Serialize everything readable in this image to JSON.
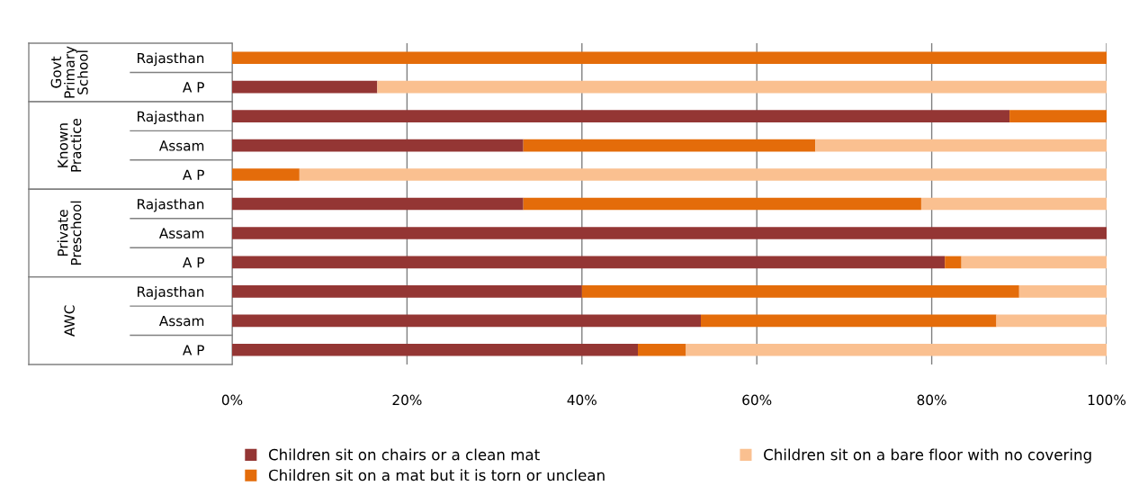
{
  "chart_data": {
    "type": "bar",
    "orientation": "horizontal",
    "stacked": true,
    "categories": [
      "Rajasthan",
      "A P",
      "Rajasthan",
      "Assam",
      "A P",
      "Rajasthan",
      "Assam",
      "A P",
      "Rajasthan",
      "Assam",
      "A P"
    ],
    "series": [
      {
        "name": "Children sit on chairs or a clean mat",
        "color": "#943634",
        "values": [
          0,
          16.6,
          88.9,
          33.3,
          0,
          33.3,
          100,
          81.5,
          40,
          53.6,
          46.4
        ]
      },
      {
        "name": "Children sit on a mat but it is torn or unclean",
        "color": "#e46c0a",
        "values": [
          100,
          0,
          11.1,
          33.4,
          7.7,
          45.5,
          0,
          1.9,
          50,
          33.8,
          5.5
        ]
      },
      {
        "name": "Children sit on a bare floor with no covering",
        "color": "#fac090",
        "values": [
          0,
          83.4,
          0,
          33.3,
          92.3,
          21.2,
          0,
          16.6,
          10,
          12.6,
          48.1
        ]
      }
    ],
    "annotations": [
      "Govt\nPrimary\nSchool",
      "Known\nPractice",
      "Private\nPreschool",
      "AWC"
    ],
    "xlim": [
      0,
      100
    ],
    "xticks": [
      {
        "value": 0,
        "label": "0%"
      },
      {
        "value": 20,
        "label": "20%"
      },
      {
        "value": 40,
        "label": "40%"
      },
      {
        "value": 60,
        "label": "60%"
      },
      {
        "value": 80,
        "label": "80%"
      },
      {
        "value": 100,
        "label": "100%"
      }
    ],
    "grid": "x",
    "legend": "bottom"
  }
}
